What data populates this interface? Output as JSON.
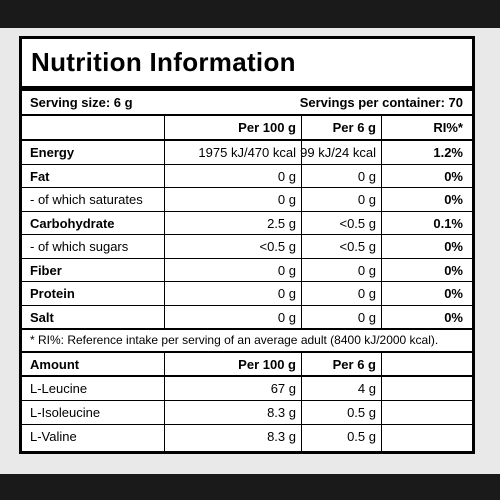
{
  "title": "Nutrition Information",
  "serving_size": "Serving size: 6 g",
  "servings_per_container": "Servings per container: 70",
  "columns": {
    "per100": "Per 100 g",
    "per6": "Per 6 g",
    "ri": "RI%*"
  },
  "nutrients": [
    {
      "name": "Energy",
      "per100": "1975 kJ/470 kcal",
      "per6": "99 kJ/24 kcal",
      "ri": "1.2%",
      "bold": true
    },
    {
      "name": "Fat",
      "per100": "0 g",
      "per6": "0 g",
      "ri": "0%",
      "bold": true
    },
    {
      "name": "- of which saturates",
      "per100": "0 g",
      "per6": "0 g",
      "ri": "0%",
      "bold": false
    },
    {
      "name": "Carbohydrate",
      "per100": "2.5 g",
      "per6": "<0.5 g",
      "ri": "0.1%",
      "bold": true
    },
    {
      "name": "- of which sugars",
      "per100": "<0.5 g",
      "per6": "<0.5 g",
      "ri": "0%",
      "bold": false
    },
    {
      "name": "Fiber",
      "per100": "0 g",
      "per6": "0 g",
      "ri": "0%",
      "bold": true
    },
    {
      "name": "Protein",
      "per100": "0 g",
      "per6": "0 g",
      "ri": "0%",
      "bold": true
    },
    {
      "name": "Salt",
      "per100": "0 g",
      "per6": "0 g",
      "ri": "0%",
      "bold": true
    }
  ],
  "footnote": "* RI%: Reference intake per serving of an average adult (8400 kJ/2000 kcal).",
  "amount_header": {
    "label": "Amount",
    "per100": "Per 100 g",
    "per6": "Per 6 g"
  },
  "amino_acids": [
    {
      "name": "L-Leucine",
      "per100": "67 g",
      "per6": "4 g"
    },
    {
      "name": "L-Isoleucine",
      "per100": "8.3 g",
      "per6": "0.5 g"
    },
    {
      "name": "L-Valine",
      "per100": "8.3 g",
      "per6": "0.5 g"
    }
  ]
}
